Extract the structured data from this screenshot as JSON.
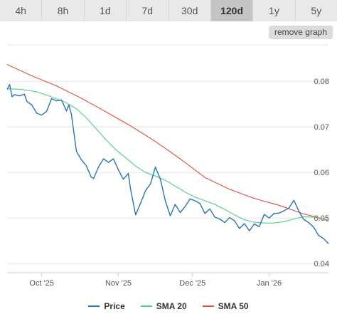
{
  "tabs": [
    {
      "label": "4h",
      "active": false
    },
    {
      "label": "8h",
      "active": false
    },
    {
      "label": "1d",
      "active": false
    },
    {
      "label": "7d",
      "active": false
    },
    {
      "label": "30d",
      "active": false
    },
    {
      "label": "120d",
      "active": true
    },
    {
      "label": "1y",
      "active": false
    },
    {
      "label": "5y",
      "active": false
    }
  ],
  "remove_graph_label": "remove graph",
  "colors": {
    "price": "#2a74b5",
    "sma20": "#4fce8a",
    "sma50": "#e84d3d",
    "grid": "#e6e6e6",
    "axis_text": "#555555"
  },
  "chart_data": {
    "type": "line",
    "x_tick_labels": [
      "Oct '25",
      "Nov '25",
      "Dec '25",
      "Jan '26"
    ],
    "x_range": [
      "2025-09-17",
      "2026-01-25"
    ],
    "ylim": [
      0.038,
      0.088
    ],
    "y_ticks": [
      0.04,
      0.05,
      0.06,
      0.07,
      0.08
    ],
    "y_tick_labels": [
      "0.04",
      "0.05",
      "0.06",
      "0.07",
      "0.08"
    ],
    "grid": true,
    "legend_position": "bottom",
    "series": [
      {
        "name": "Price",
        "color": "#2a74b5",
        "points": [
          [
            "2025-09-17",
            0.0782
          ],
          [
            "2025-09-18",
            0.0793
          ],
          [
            "2025-09-19",
            0.0766
          ],
          [
            "2025-09-20",
            0.0771
          ],
          [
            "2025-09-22",
            0.0768
          ],
          [
            "2025-09-24",
            0.0772
          ],
          [
            "2025-09-25",
            0.0756
          ],
          [
            "2025-09-27",
            0.0748
          ],
          [
            "2025-09-29",
            0.073
          ],
          [
            "2025-10-01",
            0.0726
          ],
          [
            "2025-10-03",
            0.0734
          ],
          [
            "2025-10-05",
            0.0762
          ],
          [
            "2025-10-07",
            0.0757
          ],
          [
            "2025-10-09",
            0.0759
          ],
          [
            "2025-10-11",
            0.0735
          ],
          [
            "2025-10-12",
            0.0748
          ],
          [
            "2025-10-13",
            0.0728
          ],
          [
            "2025-10-15",
            0.0647
          ],
          [
            "2025-10-17",
            0.0628
          ],
          [
            "2025-10-19",
            0.0615
          ],
          [
            "2025-10-21",
            0.059
          ],
          [
            "2025-10-22",
            0.0587
          ],
          [
            "2025-10-24",
            0.0612
          ],
          [
            "2025-10-26",
            0.063
          ],
          [
            "2025-10-28",
            0.0622
          ],
          [
            "2025-10-30",
            0.063
          ],
          [
            "2025-11-01",
            0.0606
          ],
          [
            "2025-11-03",
            0.0585
          ],
          [
            "2025-11-05",
            0.0598
          ],
          [
            "2025-11-06",
            0.0562
          ],
          [
            "2025-11-08",
            0.0507
          ],
          [
            "2025-11-10",
            0.0533
          ],
          [
            "2025-11-12",
            0.056
          ],
          [
            "2025-11-14",
            0.0575
          ],
          [
            "2025-11-16",
            0.0612
          ],
          [
            "2025-11-18",
            0.0585
          ],
          [
            "2025-11-20",
            0.0538
          ],
          [
            "2025-11-22",
            0.0505
          ],
          [
            "2025-11-24",
            0.053
          ],
          [
            "2025-11-26",
            0.0512
          ],
          [
            "2025-11-28",
            0.0525
          ],
          [
            "2025-11-30",
            0.0542
          ],
          [
            "2025-12-02",
            0.0538
          ],
          [
            "2025-12-04",
            0.0532
          ],
          [
            "2025-12-06",
            0.051
          ],
          [
            "2025-12-08",
            0.052
          ],
          [
            "2025-12-10",
            0.0502
          ],
          [
            "2025-12-12",
            0.0498
          ],
          [
            "2025-12-14",
            0.049
          ],
          [
            "2025-12-16",
            0.0501
          ],
          [
            "2025-12-18",
            0.0494
          ],
          [
            "2025-12-20",
            0.0477
          ],
          [
            "2025-12-22",
            0.0488
          ],
          [
            "2025-12-24",
            0.0472
          ],
          [
            "2025-12-26",
            0.0487
          ],
          [
            "2025-12-28",
            0.0481
          ],
          [
            "2025-12-30",
            0.0508
          ],
          [
            "2026-01-01",
            0.05
          ],
          [
            "2026-01-03",
            0.051
          ],
          [
            "2026-01-05",
            0.0511
          ],
          [
            "2026-01-07",
            0.0516
          ],
          [
            "2026-01-09",
            0.0522
          ],
          [
            "2026-01-11",
            0.0539
          ],
          [
            "2026-01-13",
            0.0515
          ],
          [
            "2026-01-15",
            0.0497
          ],
          [
            "2026-01-17",
            0.049
          ],
          [
            "2026-01-19",
            0.048
          ],
          [
            "2026-01-21",
            0.0462
          ],
          [
            "2026-01-23",
            0.0455
          ],
          [
            "2026-01-25",
            0.0444
          ]
        ]
      },
      {
        "name": "SMA 20",
        "color": "#4fce8a",
        "points": [
          [
            "2025-09-17",
            0.0784
          ],
          [
            "2025-09-23",
            0.0782
          ],
          [
            "2025-09-29",
            0.0777
          ],
          [
            "2025-10-05",
            0.0766
          ],
          [
            "2025-10-11",
            0.0753
          ],
          [
            "2025-10-15",
            0.074
          ],
          [
            "2025-10-19",
            0.072
          ],
          [
            "2025-10-23",
            0.0696
          ],
          [
            "2025-10-27",
            0.0672
          ],
          [
            "2025-10-31",
            0.065
          ],
          [
            "2025-11-04",
            0.0632
          ],
          [
            "2025-11-08",
            0.0614
          ],
          [
            "2025-11-12",
            0.06
          ],
          [
            "2025-11-16",
            0.0592
          ],
          [
            "2025-11-20",
            0.0583
          ],
          [
            "2025-11-24",
            0.057
          ],
          [
            "2025-11-28",
            0.0557
          ],
          [
            "2025-12-02",
            0.0546
          ],
          [
            "2025-12-06",
            0.0538
          ],
          [
            "2025-12-10",
            0.053
          ],
          [
            "2025-12-14",
            0.0519
          ],
          [
            "2025-12-18",
            0.0507
          ],
          [
            "2025-12-22",
            0.0496
          ],
          [
            "2025-12-26",
            0.0491
          ],
          [
            "2025-12-30",
            0.0489
          ],
          [
            "2026-01-03",
            0.0489
          ],
          [
            "2026-01-07",
            0.0492
          ],
          [
            "2026-01-11",
            0.0498
          ],
          [
            "2026-01-15",
            0.0503
          ],
          [
            "2026-01-19",
            0.0502
          ],
          [
            "2026-01-23",
            0.0497
          ],
          [
            "2026-01-25",
            0.0492
          ]
        ]
      },
      {
        "name": "SMA 50",
        "color": "#e84d3d",
        "points": [
          [
            "2025-09-17",
            0.0837
          ],
          [
            "2025-09-27",
            0.0812
          ],
          [
            "2025-10-07",
            0.079
          ],
          [
            "2025-10-17",
            0.0763
          ],
          [
            "2025-10-27",
            0.0733
          ],
          [
            "2025-11-06",
            0.0702
          ],
          [
            "2025-11-16",
            0.0668
          ],
          [
            "2025-11-26",
            0.063
          ],
          [
            "2025-12-06",
            0.0589
          ],
          [
            "2025-12-16",
            0.0563
          ],
          [
            "2025-12-26",
            0.0543
          ],
          [
            "2026-01-05",
            0.0528
          ],
          [
            "2026-01-15",
            0.0509
          ],
          [
            "2026-01-25",
            0.0495
          ]
        ]
      }
    ]
  }
}
